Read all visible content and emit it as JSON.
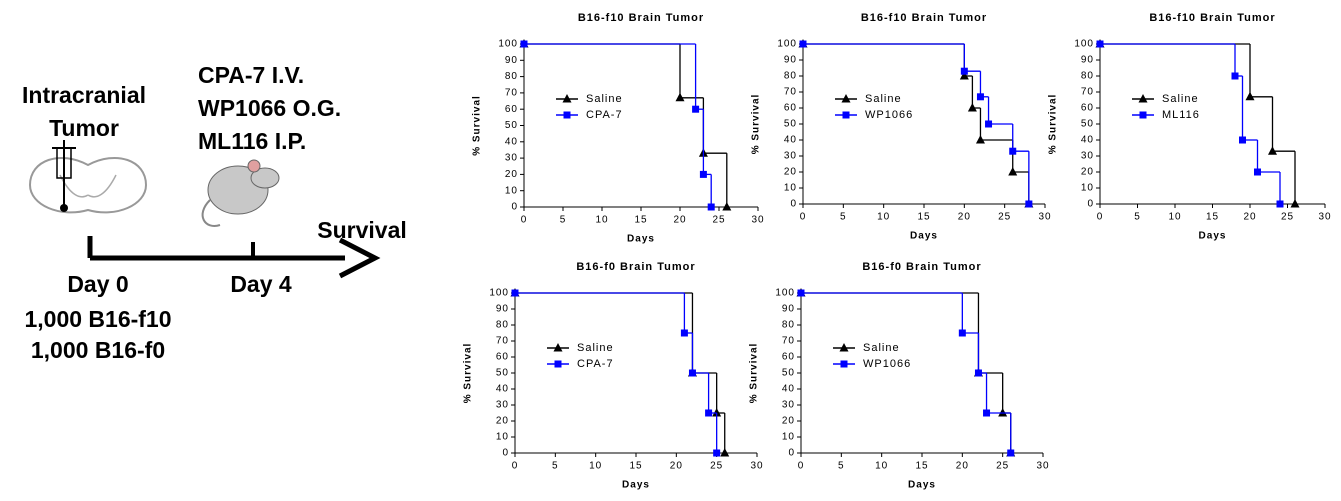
{
  "schematic": {
    "tumor_label": [
      "Intracranial",
      "Tumor"
    ],
    "treatments": [
      "CPA-7 I.V.",
      "WP1066 O.G.",
      "ML116 I.P."
    ],
    "endpoint": "Survival",
    "day0": "Day 0",
    "cells": [
      "1,000 B16-f10",
      "1,000 B16-f0"
    ],
    "day4": "Day 4"
  },
  "chart_data": [
    {
      "type": "survival",
      "title": "B16-f10 Brain Tumor",
      "x_label": "Days",
      "y_label": "% Survival",
      "xlim": [
        0,
        30
      ],
      "xticks": [
        0,
        5,
        10,
        15,
        20,
        25,
        30
      ],
      "ylim": [
        0,
        100
      ],
      "yticks": [
        0,
        10,
        20,
        30,
        40,
        50,
        60,
        70,
        80,
        90,
        100
      ],
      "series": [
        {
          "name": "Saline",
          "color": "#000000",
          "marker": "triangle",
          "x": [
            0,
            20,
            23,
            26
          ],
          "values": [
            100,
            67,
            33,
            0
          ]
        },
        {
          "name": "CPA-7",
          "color": "#0000ff",
          "marker": "square",
          "x": [
            0,
            22,
            23,
            24
          ],
          "values": [
            100,
            60,
            20,
            0
          ]
        }
      ]
    },
    {
      "type": "survival",
      "title": "B16-f10 Brain Tumor",
      "x_label": "Days",
      "y_label": "% Survival",
      "xlim": [
        0,
        30
      ],
      "xticks": [
        0,
        5,
        10,
        15,
        20,
        25,
        30
      ],
      "ylim": [
        0,
        100
      ],
      "yticks": [
        0,
        10,
        20,
        30,
        40,
        50,
        60,
        70,
        80,
        90,
        100
      ],
      "series": [
        {
          "name": "Saline",
          "color": "#000000",
          "marker": "triangle",
          "x": [
            0,
            20,
            21,
            22,
            26,
            28
          ],
          "values": [
            100,
            80,
            60,
            40,
            20,
            0
          ]
        },
        {
          "name": "WP1066",
          "color": "#0000ff",
          "marker": "square",
          "x": [
            0,
            20,
            22,
            23,
            26,
            28
          ],
          "values": [
            100,
            83,
            67,
            50,
            33,
            0
          ]
        }
      ]
    },
    {
      "type": "survival",
      "title": "B16-f10 Brain Tumor",
      "x_label": "Days",
      "y_label": "% Survival",
      "xlim": [
        0,
        30
      ],
      "xticks": [
        0,
        5,
        10,
        15,
        20,
        25,
        30
      ],
      "ylim": [
        0,
        100
      ],
      "yticks": [
        0,
        10,
        20,
        30,
        40,
        50,
        60,
        70,
        80,
        90,
        100
      ],
      "series": [
        {
          "name": "Saline",
          "color": "#000000",
          "marker": "triangle",
          "x": [
            0,
            20,
            23,
            26
          ],
          "values": [
            100,
            67,
            33,
            0
          ]
        },
        {
          "name": "ML116",
          "color": "#0000ff",
          "marker": "square",
          "x": [
            0,
            18,
            19,
            21,
            24
          ],
          "values": [
            100,
            80,
            40,
            20,
            0
          ]
        }
      ]
    },
    {
      "type": "survival",
      "title": "B16-f0 Brain Tumor",
      "x_label": "Days",
      "y_label": "% Survival",
      "xlim": [
        0,
        30
      ],
      "xticks": [
        0,
        5,
        10,
        15,
        20,
        25,
        30
      ],
      "ylim": [
        0,
        100
      ],
      "yticks": [
        0,
        10,
        20,
        30,
        40,
        50,
        60,
        70,
        80,
        90,
        100
      ],
      "series": [
        {
          "name": "Saline",
          "color": "#000000",
          "marker": "triangle",
          "x": [
            0,
            22,
            25,
            26
          ],
          "values": [
            100,
            50,
            25,
            0
          ]
        },
        {
          "name": "CPA-7",
          "color": "#0000ff",
          "marker": "square",
          "x": [
            0,
            21,
            22,
            24,
            25
          ],
          "values": [
            100,
            75,
            50,
            25,
            0
          ]
        }
      ]
    },
    {
      "type": "survival",
      "title": "B16-f0 Brain Tumor",
      "x_label": "Days",
      "y_label": "% Survival",
      "xlim": [
        0,
        30
      ],
      "xticks": [
        0,
        5,
        10,
        15,
        20,
        25,
        30
      ],
      "ylim": [
        0,
        100
      ],
      "yticks": [
        0,
        10,
        20,
        30,
        40,
        50,
        60,
        70,
        80,
        90,
        100
      ],
      "series": [
        {
          "name": "Saline",
          "color": "#000000",
          "marker": "triangle",
          "x": [
            0,
            22,
            25,
            26
          ],
          "values": [
            100,
            50,
            25,
            0
          ]
        },
        {
          "name": "WP1066",
          "color": "#0000ff",
          "marker": "square",
          "x": [
            0,
            20,
            22,
            23,
            26
          ],
          "values": [
            100,
            75,
            50,
            25,
            0
          ]
        }
      ]
    }
  ]
}
